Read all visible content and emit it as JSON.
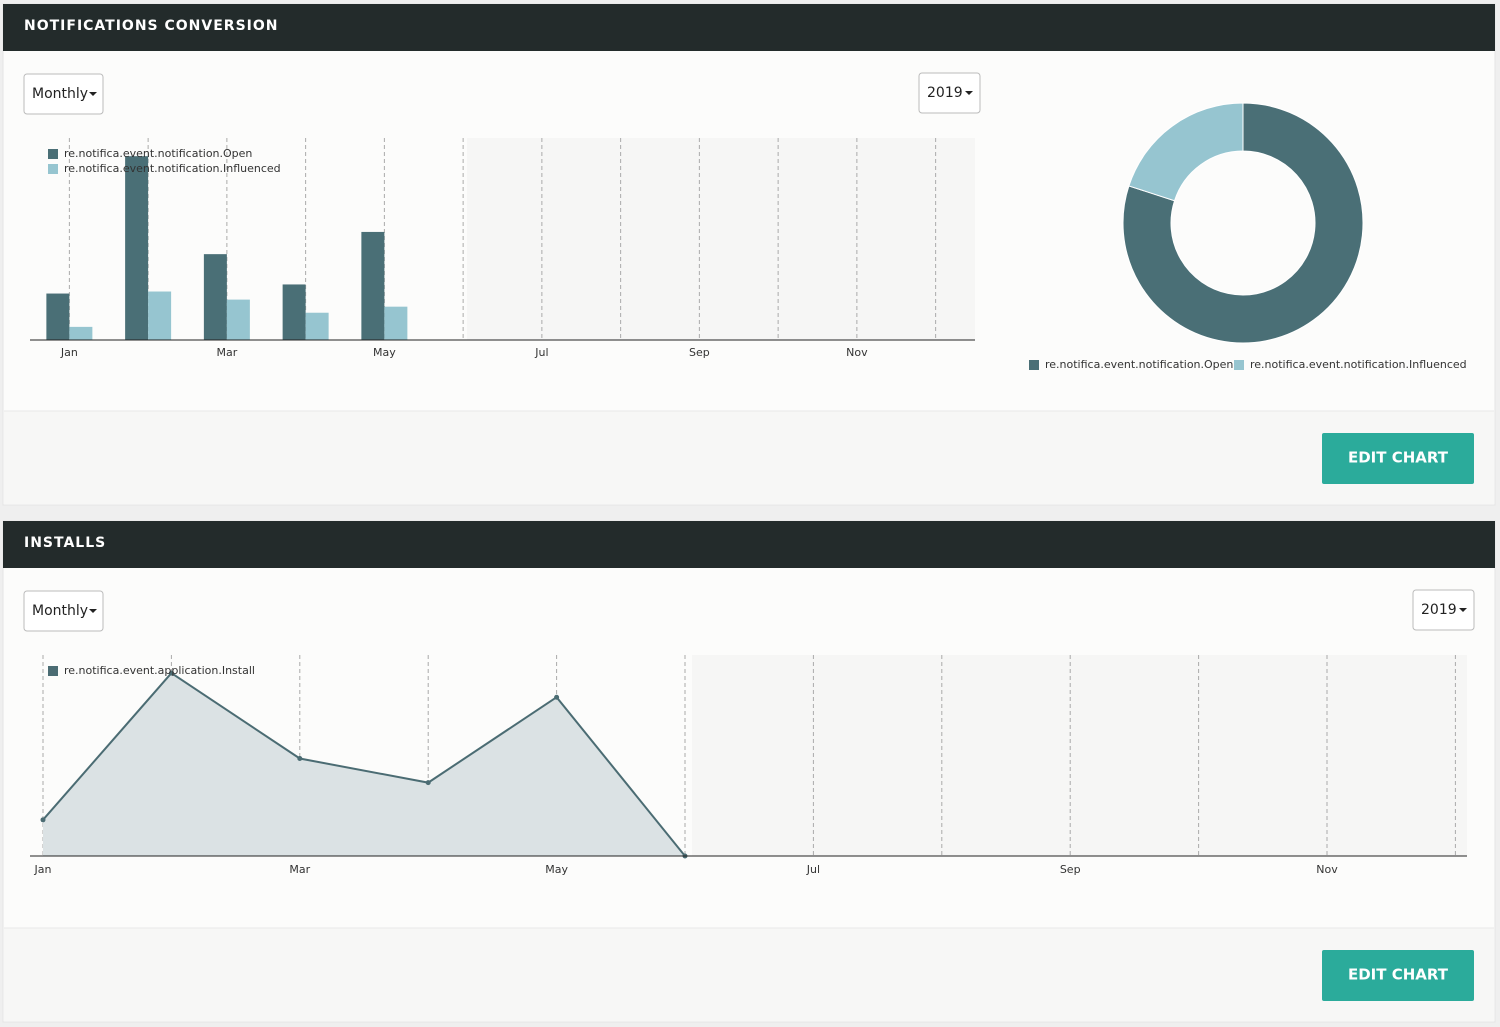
{
  "panels": [
    {
      "title": "NOTIFICATIONS CONVERSION",
      "period": "Monthly",
      "year": "2019",
      "button": "EDIT CHART"
    },
    {
      "title": "INSTALLS",
      "period": "Monthly",
      "year": "2019",
      "button": "EDIT CHART"
    }
  ],
  "chart_data": [
    {
      "type": "bar",
      "categories": [
        "Jan",
        null,
        "Mar",
        null,
        "May",
        null,
        "Jul",
        null,
        "Sep",
        null,
        "Nov",
        null
      ],
      "series": [
        {
          "name": "re.notifica.event.notification.Open",
          "color": "#4a6f76",
          "values": [
            46,
            182,
            85,
            55,
            107,
            null,
            null,
            null,
            null,
            null,
            null,
            null
          ]
        },
        {
          "name": "re.notifica.event.notification.Influenced",
          "color": "#96c5d0",
          "values": [
            13,
            48,
            40,
            27,
            33,
            null,
            null,
            null,
            null,
            null,
            null,
            null
          ]
        }
      ],
      "ylim": [
        0,
        200
      ],
      "grid": true
    },
    {
      "type": "pie",
      "categories": [
        "re.notifica.event.notification.Open",
        "re.notifica.event.notification.Influenced"
      ],
      "values": [
        80,
        20
      ],
      "colors": [
        "#4a6f76",
        "#96c5d0"
      ]
    },
    {
      "type": "line",
      "categories": [
        "Jan",
        null,
        "Mar",
        null,
        "May",
        null,
        "Jul",
        null,
        "Sep",
        null,
        "Nov",
        null
      ],
      "series": [
        {
          "name": "re.notifica.event.application.Install",
          "color": "#4b6c73",
          "values": [
            36,
            182,
            97,
            73,
            158,
            0,
            null,
            null,
            null,
            null,
            null,
            null
          ]
        }
      ],
      "ylim": [
        0,
        200
      ],
      "grid": true
    }
  ]
}
